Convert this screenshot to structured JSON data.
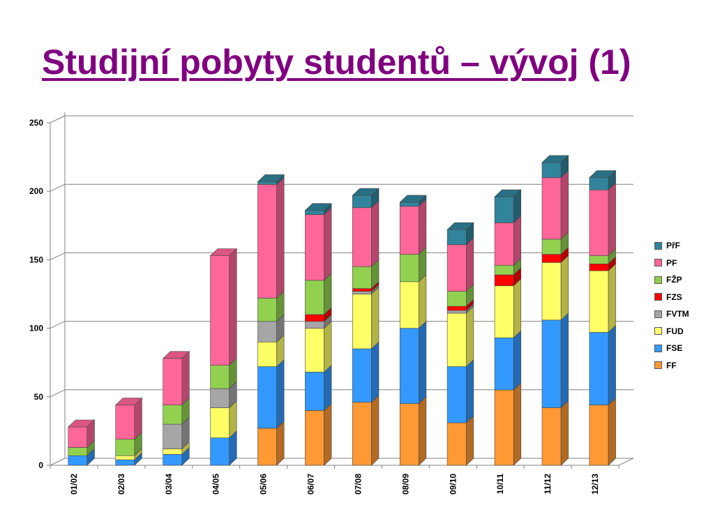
{
  "title": {
    "underlined": "Studijní pobyty studentů – vývoj",
    "suffix": " (1)",
    "color": "#800080"
  },
  "chart_data": {
    "type": "bar",
    "stacked": true,
    "style": "3d",
    "categories": [
      "01/02",
      "02/03",
      "03/04",
      "04/05",
      "05/06",
      "06/07",
      "07/08",
      "08/09",
      "09/10",
      "10/11",
      "11/12",
      "12/13"
    ],
    "ylim": [
      0,
      250
    ],
    "yticks": [
      0,
      50,
      100,
      150,
      200,
      250
    ],
    "grid": true,
    "legend_position": "right",
    "series": [
      {
        "name": "FF",
        "color": "#FF9933",
        "values": [
          0,
          0,
          0,
          0,
          27,
          40,
          46,
          45,
          31,
          55,
          42,
          44
        ]
      },
      {
        "name": "FSE",
        "color": "#3399FF",
        "values": [
          7,
          4,
          8,
          20,
          45,
          28,
          39,
          55,
          41,
          38,
          64,
          53
        ]
      },
      {
        "name": "FUD",
        "color": "#FFFF66",
        "values": [
          0,
          3,
          4,
          22,
          18,
          32,
          40,
          34,
          39,
          38,
          42,
          45
        ]
      },
      {
        "name": "FVTM",
        "color": "#A6A6A6",
        "values": [
          0,
          0,
          18,
          14,
          15,
          5,
          2,
          0,
          2,
          0,
          0,
          0
        ]
      },
      {
        "name": "FZS",
        "color": "#FF0000",
        "values": [
          0,
          0,
          0,
          0,
          0,
          5,
          2,
          0,
          3,
          8,
          6,
          5
        ]
      },
      {
        "name": "FŽP",
        "color": "#92D050",
        "values": [
          6,
          12,
          14,
          17,
          17,
          25,
          16,
          20,
          11,
          7,
          11,
          6
        ]
      },
      {
        "name": "PF",
        "color": "#FF6699",
        "values": [
          15,
          25,
          34,
          80,
          83,
          48,
          43,
          35,
          34,
          31,
          45,
          48
        ]
      },
      {
        "name": "PřF",
        "color": "#31849B",
        "values": [
          0,
          0,
          0,
          0,
          2,
          3,
          9,
          3,
          11,
          19,
          11,
          9
        ]
      }
    ]
  },
  "legend_order": [
    "PřF",
    "PF",
    "FŽP",
    "FZS",
    "FVTM",
    "FUD",
    "FSE",
    "FF"
  ]
}
